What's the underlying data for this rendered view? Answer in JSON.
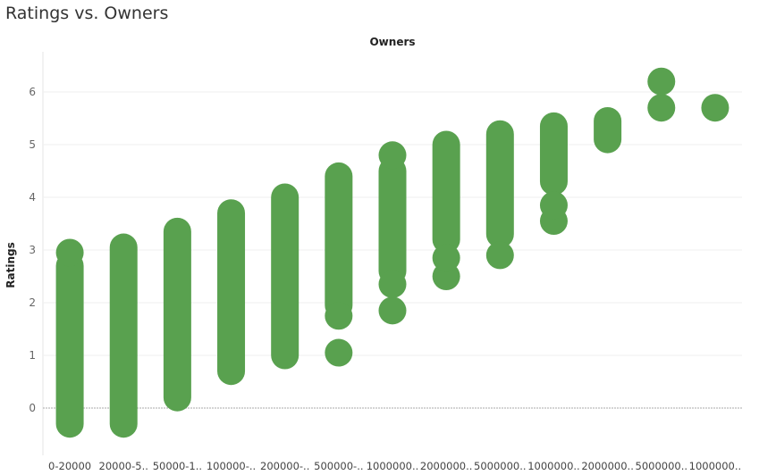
{
  "chart_data": {
    "type": "scatter",
    "title": "Ratings vs. Owners",
    "top_axis_label": "Owners",
    "ylabel": "Ratings",
    "ylim": [
      -0.85,
      7.3
    ],
    "yticks": [
      0,
      1,
      2,
      3,
      4,
      5,
      6
    ],
    "grid": true,
    "mark_color": "#59a14f",
    "zero_line_color": "#a9a9a9",
    "categories": [
      "0-20000",
      "20000-5..",
      "50000-1..",
      "100000-..",
      "200000-..",
      "500000-..",
      "1000000..",
      "2000000..",
      "5000000..",
      "1000000..",
      "2000000..",
      "5000000..",
      "1000000.."
    ],
    "columns": [
      {
        "bands": [
          [
            -0.3,
            2.7
          ]
        ],
        "points": [
          2.95
        ]
      },
      {
        "bands": [
          [
            -0.3,
            3.05
          ]
        ],
        "points": []
      },
      {
        "bands": [
          [
            0.2,
            3.35
          ]
        ],
        "points": []
      },
      {
        "bands": [
          [
            0.7,
            3.7
          ]
        ],
        "points": []
      },
      {
        "bands": [
          [
            1.0,
            4.0
          ]
        ],
        "points": []
      },
      {
        "bands": [
          [
            1.95,
            4.4
          ]
        ],
        "points": [
          1.05,
          1.75
        ]
      },
      {
        "bands": [
          [
            2.6,
            4.5
          ]
        ],
        "points": [
          1.85,
          2.35,
          4.8
        ]
      },
      {
        "bands": [
          [
            3.2,
            5.0
          ]
        ],
        "points": [
          2.5,
          2.85
        ]
      },
      {
        "bands": [
          [
            3.3,
            5.2
          ]
        ],
        "points": [
          2.9
        ]
      },
      {
        "bands": [
          [
            4.3,
            5.35
          ]
        ],
        "points": [
          3.55,
          3.85
        ]
      },
      {
        "bands": [
          [
            5.1,
            5.45
          ]
        ],
        "points": []
      },
      {
        "bands": [],
        "points": [
          5.7,
          6.2
        ]
      },
      {
        "bands": [],
        "points": [
          5.7
        ]
      }
    ]
  }
}
